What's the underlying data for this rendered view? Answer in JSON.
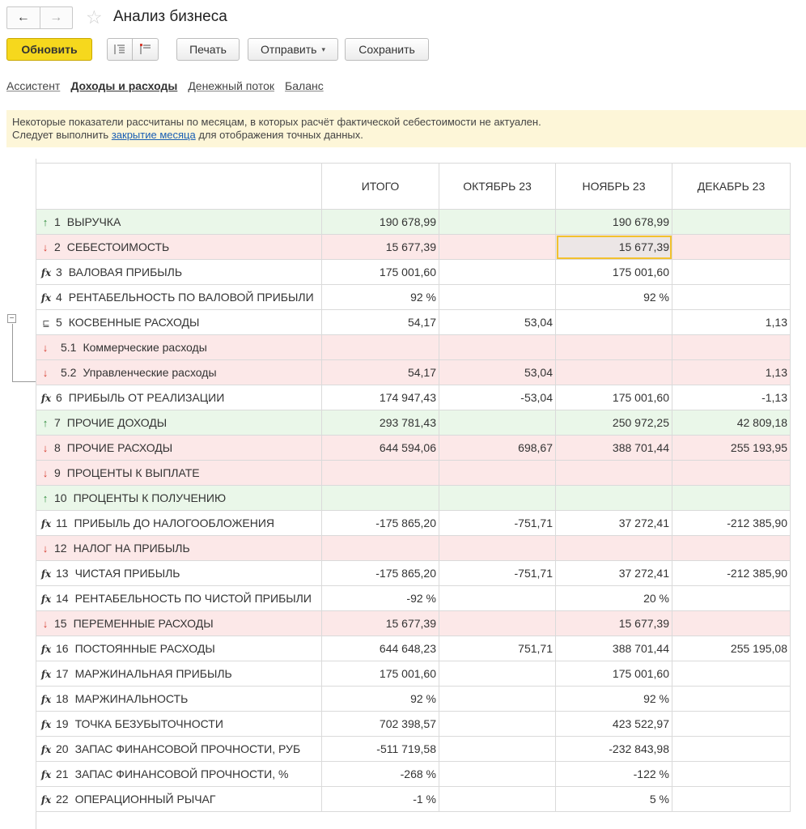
{
  "window": {
    "title": "Анализ бизнеса",
    "back_icon": "←",
    "forward_icon": "→",
    "star_icon": "☆"
  },
  "toolbar": {
    "refresh_label": "Обновить",
    "print_label": "Печать",
    "send_label": "Отправить",
    "save_label": "Сохранить"
  },
  "tabs": [
    {
      "label": "Ассистент",
      "active": false
    },
    {
      "label": "Доходы и расходы",
      "active": true
    },
    {
      "label": "Денежный поток",
      "active": false
    },
    {
      "label": "Баланс",
      "active": false
    }
  ],
  "warning": {
    "line1": "Некоторые показатели рассчитаны по месяцам, в которых расчёт фактической себестоимости не актуален.",
    "line2_before": "Следует выполнить ",
    "line2_link": "закрытие месяца",
    "line2_after": " для отображения точных данных."
  },
  "table": {
    "columns": [
      "",
      "ИТОГО",
      "ОКТЯБРЬ 23",
      "НОЯБРЬ 23",
      "ДЕКАБРЬ 23"
    ],
    "rows": [
      {
        "kind": "pos",
        "marker": "up",
        "code": "1",
        "name": "ВЫРУЧКА",
        "total": "190 678,99",
        "oct": "",
        "nov": "190 678,99",
        "dec": ""
      },
      {
        "kind": "neg",
        "marker": "down",
        "code": "2",
        "name": "СЕБЕСТОИМОСТЬ",
        "total": "15 677,39",
        "oct": "",
        "nov": "15 677,39",
        "dec": "",
        "selected": "nov"
      },
      {
        "kind": "calc",
        "marker": "fx",
        "code": "3",
        "name": "ВАЛОВАЯ ПРИБЫЛЬ",
        "total": "175 001,60",
        "oct": "",
        "nov": "175 001,60",
        "dec": ""
      },
      {
        "kind": "calc",
        "marker": "fx",
        "code": "4",
        "name": "РЕНТАБЕЛЬНОСТЬ ПО ВАЛОВОЙ ПРИБЫЛИ",
        "total": "92 %",
        "oct": "",
        "nov": "92 %",
        "dec": ""
      },
      {
        "kind": "calc",
        "marker": "grp",
        "code": "5",
        "name": "КОСВЕННЫЕ РАСХОДЫ",
        "total": "54,17",
        "oct": "53,04",
        "nov": "",
        "dec": "1,13"
      },
      {
        "kind": "neg",
        "marker": "down",
        "code": "5.1",
        "name": "Коммерческие расходы",
        "total": "",
        "oct": "",
        "nov": "",
        "dec": "",
        "sub": true
      },
      {
        "kind": "neg",
        "marker": "down",
        "code": "5.2",
        "name": "Управленческие расходы",
        "total": "54,17",
        "oct": "53,04",
        "nov": "",
        "dec": "1,13",
        "sub": true
      },
      {
        "kind": "calc",
        "marker": "fx",
        "code": "6",
        "name": "ПРИБЫЛЬ ОТ РЕАЛИЗАЦИИ",
        "total": "174 947,43",
        "oct": "-53,04",
        "nov": "175 001,60",
        "dec": "-1,13"
      },
      {
        "kind": "pos",
        "marker": "up",
        "code": "7",
        "name": "ПРОЧИЕ ДОХОДЫ",
        "total": "293 781,43",
        "oct": "",
        "nov": "250 972,25",
        "dec": "42 809,18"
      },
      {
        "kind": "neg",
        "marker": "down",
        "code": "8",
        "name": "ПРОЧИЕ РАСХОДЫ",
        "total": "644 594,06",
        "oct": "698,67",
        "nov": "388 701,44",
        "dec": "255 193,95"
      },
      {
        "kind": "neg",
        "marker": "down",
        "code": "9",
        "name": "ПРОЦЕНТЫ К ВЫПЛАТЕ",
        "total": "",
        "oct": "",
        "nov": "",
        "dec": ""
      },
      {
        "kind": "pos",
        "marker": "up",
        "code": "10",
        "name": "ПРОЦЕНТЫ К ПОЛУЧЕНИЮ",
        "total": "",
        "oct": "",
        "nov": "",
        "dec": ""
      },
      {
        "kind": "calc",
        "marker": "fx",
        "code": "11",
        "name": "ПРИБЫЛЬ ДО НАЛОГООБЛОЖЕНИЯ",
        "total": "-175 865,20",
        "oct": "-751,71",
        "nov": "37 272,41",
        "dec": "-212 385,90"
      },
      {
        "kind": "neg",
        "marker": "down",
        "code": "12",
        "name": "НАЛОГ НА ПРИБЫЛЬ",
        "total": "",
        "oct": "",
        "nov": "",
        "dec": ""
      },
      {
        "kind": "calc",
        "marker": "fx",
        "code": "13",
        "name": "ЧИСТАЯ ПРИБЫЛЬ",
        "total": "-175 865,20",
        "oct": "-751,71",
        "nov": "37 272,41",
        "dec": "-212 385,90"
      },
      {
        "kind": "calc",
        "marker": "fx",
        "code": "14",
        "name": "РЕНТАБЕЛЬНОСТЬ ПО ЧИСТОЙ ПРИБЫЛИ",
        "total": "-92 %",
        "oct": "",
        "nov": "20 %",
        "dec": ""
      },
      {
        "kind": "neg",
        "marker": "down",
        "code": "15",
        "name": "ПЕРЕМЕННЫЕ РАСХОДЫ",
        "total": "15 677,39",
        "oct": "",
        "nov": "15 677,39",
        "dec": ""
      },
      {
        "kind": "calc",
        "marker": "fx",
        "code": "16",
        "name": "ПОСТОЯННЫЕ РАСХОДЫ",
        "total": "644 648,23",
        "oct": "751,71",
        "nov": "388 701,44",
        "dec": "255 195,08"
      },
      {
        "kind": "calc",
        "marker": "fx",
        "code": "17",
        "name": "МАРЖИНАЛЬНАЯ ПРИБЫЛЬ",
        "total": "175 001,60",
        "oct": "",
        "nov": "175 001,60",
        "dec": ""
      },
      {
        "kind": "calc",
        "marker": "fx",
        "code": "18",
        "name": "МАРЖИНАЛЬНОСТЬ",
        "total": "92 %",
        "oct": "",
        "nov": "92 %",
        "dec": ""
      },
      {
        "kind": "calc",
        "marker": "fx",
        "code": "19",
        "name": "ТОЧКА БЕЗУБЫТОЧНОСТИ",
        "total": "702 398,57",
        "oct": "",
        "nov": "423 522,97",
        "dec": ""
      },
      {
        "kind": "calc",
        "marker": "fx",
        "code": "20",
        "name": "ЗАПАС ФИНАНСОВОЙ ПРОЧНОСТИ, РУБ",
        "total": "-511 719,58",
        "oct": "",
        "nov": "-232 843,98",
        "dec": ""
      },
      {
        "kind": "calc",
        "marker": "fx",
        "code": "21",
        "name": "ЗАПАС ФИНАНСОВОЙ ПРОЧНОСТИ, %",
        "total": "-268 %",
        "oct": "",
        "nov": "-122 %",
        "dec": ""
      },
      {
        "kind": "calc",
        "marker": "fx",
        "code": "22",
        "name": "ОПЕРАЦИОННЫЙ РЫЧАГ",
        "total": "-1 %",
        "oct": "",
        "nov": "5 %",
        "dec": ""
      }
    ]
  },
  "colors": {
    "accent_yellow": "#f6d81d",
    "income_row": "#eaf7e9",
    "expense_row": "#fce8e8",
    "warning_bg": "#fdf6d8",
    "selection": "#f2c12e"
  }
}
